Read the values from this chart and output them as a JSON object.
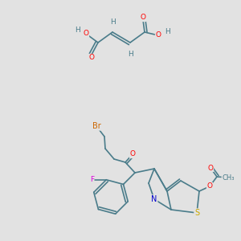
{
  "bg_color": "#e2e2e2",
  "colors": {
    "C": "#4a7c8a",
    "O": "#ff0000",
    "N": "#0000cd",
    "S": "#ccaa00",
    "F": "#dd00dd",
    "Br": "#cc6600",
    "H": "#4a7c8a",
    "bond": "#4a7c8a"
  },
  "fs": 6.5
}
